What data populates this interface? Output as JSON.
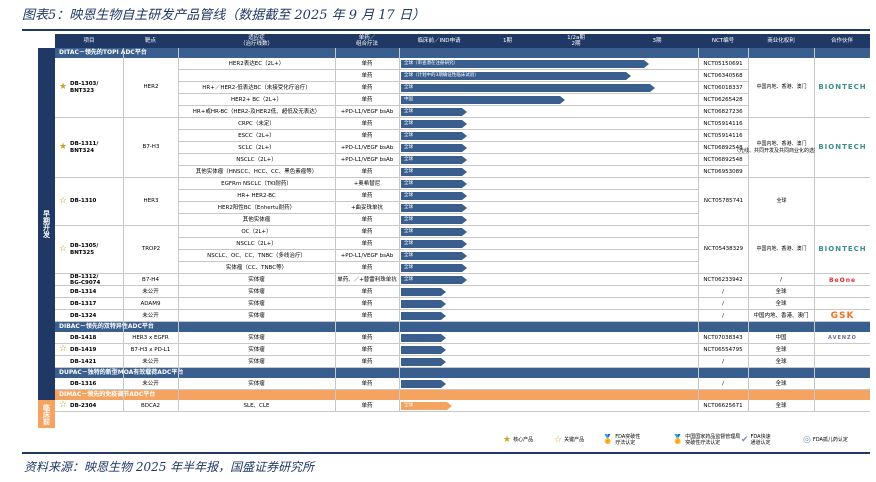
{
  "title": "图表5：映恩生物自主研发产品管线（数据截至 2025 年 9 月 17 日）",
  "source": "资料来源：映恩生物 2025 年半年报，国盛证券研究所",
  "colors": {
    "navy": "#1f3864",
    "steel": "#3a5f8f",
    "orange": "#f4a460",
    "border": "#c8c8c8",
    "gold": "#c9a227",
    "biontech": "#3c8e8e",
    "gsk": "#f36f21",
    "beone": "#e03030"
  },
  "header": {
    "drug": "项目",
    "target": "靶点",
    "indication": "适应症\n（治疗线数）",
    "regimen": "单药／\n组合疗法",
    "preclinical": "临床前／IND申请",
    "phase1": "1期",
    "phase2": "1/2a期\n2期",
    "phase3": "3期",
    "nct": "NCT编号",
    "rights": "商业化权利",
    "partner": "合作伙伴"
  },
  "sidebar": {
    "top": "早期开发",
    "bottom": "临床前"
  },
  "sections": [
    {
      "label": "DITAC－领先的TOPI ADC平台",
      "color": "#3a5f8f"
    },
    {
      "label": "DIBAC－领先的双特异性ADC平台",
      "color": "#3a5f8f"
    },
    {
      "label": "DUPAC－独特的新型MOA有效载荷ADC平台",
      "color": "#3a5f8f"
    },
    {
      "label": "DIMAC－领先的免疫调节ADC平台",
      "color": "#f4a460"
    }
  ],
  "drugs": [
    {
      "name": "DB-1303/\nBNT323",
      "star": "★",
      "target": "HER2",
      "rights": "中国内地、香港、澳门",
      "partner": "BIONTECH"
    },
    {
      "name": "DB-1311/\nBNT324",
      "star": "★",
      "target": "B7-H3",
      "rights": "中国内地、香港、澳门\n（光线、共同开发及共同商业化的选择权）",
      "partner": "BIONTECH"
    },
    {
      "name": "DB-1310",
      "star": "☆",
      "target": "HER3",
      "rights": "全球",
      "partner": ""
    },
    {
      "name": "DB-1305/\nBNT325",
      "star": "☆",
      "target": "TROP2",
      "rights": "中国内地、香港、澳门",
      "partner": "BIONTECH"
    }
  ],
  "rows": [
    {
      "indication": "HER2表达EC（2L+）",
      "regimen": "单药",
      "bar_text": "全球（审查潜在注册研究）",
      "nct": "NCT05150691"
    },
    {
      "indication": "",
      "regimen": "单药",
      "bar_text": "全球（计划中的3期确证性临床试验）",
      "nct": "NCT06340568"
    },
    {
      "indication": "HR+／HER2-低表达BC（未接受化疗治疗）",
      "regimen": "单药",
      "bar_text": "全球",
      "nct": "NCT06018337"
    },
    {
      "indication": "HER2+ BC（2L+）",
      "regimen": "单药",
      "bar_text": "中国",
      "nct": "NCT06265428"
    },
    {
      "indication": "HR+或HR-BC（HER2-及HER2低、超低及无表达）",
      "regimen": "+PD-L1/VEGF bsAb",
      "bar_text": "全球",
      "nct": "NCT06827236"
    },
    {
      "indication": "CRPC（未定）",
      "regimen": "单药",
      "bar_text": "全球",
      "nct": "NCT05914116"
    },
    {
      "indication": "ESCC（2L+）",
      "regimen": "单药",
      "bar_text": "全球",
      "nct": "NCT05914116"
    },
    {
      "indication": "SCLC（2L+）",
      "regimen": "+PD-L1/VEGF bsAb",
      "bar_text": "全球",
      "nct": "NCT06892548"
    },
    {
      "indication": "NSCLC（2L+）",
      "regimen": "+PD-L1/VEGF bsAb",
      "bar_text": "全球",
      "nct": "NCT06892548"
    },
    {
      "indication": "其他实体瘤（HNSCC、HCC、CC、黑色素瘤等）",
      "regimen": "单药",
      "bar_text": "全球",
      "nct": "NCT06953089"
    },
    {
      "indication": "EGFRm NSCLC（TKI耐药）",
      "regimen": "+奥希替尼",
      "bar_text": "全球",
      "nct": ""
    },
    {
      "indication": "HR+ HER2-BC",
      "regimen": "单药",
      "bar_text": "全球",
      "nct": ""
    },
    {
      "indication": "HER2阳性BC（Enhertu耐药）",
      "regimen": "+曲妥珠单抗",
      "bar_text": "全球",
      "nct": ""
    },
    {
      "indication": "其他实体瘤",
      "regimen": "单药",
      "bar_text": "全球",
      "nct": ""
    },
    {
      "indication": "OC（2L+）",
      "regimen": "单药",
      "bar_text": "全球",
      "nct": ""
    },
    {
      "indication": "NSCLC（2L+）",
      "regimen": "单药",
      "bar_text": "全球",
      "nct": ""
    },
    {
      "indication": "NSCLC、OC、CC、TNBC（多线治疗）",
      "regimen": "+PD-L1/VEGF bsAb",
      "bar_text": "全球",
      "nct": ""
    },
    {
      "indication": "实体瘤（CC、TNBC等）",
      "regimen": "单药",
      "bar_text": "全球",
      "nct": ""
    },
    {
      "drug": "DB-1312/\nBG-C9074",
      "target": "B7-H4",
      "indication": "实体瘤",
      "regimen": "单药、／+替雷利珠单抗",
      "bar_text": "全球",
      "nct": "NCT06233942",
      "rights": "/",
      "partner": "BeOne"
    },
    {
      "drug": "DB-1314",
      "target": "未公开",
      "indication": "实体瘤",
      "regimen": "单药",
      "bar_text": "",
      "nct": "/",
      "rights": "全球",
      "partner": ""
    },
    {
      "drug": "DB-1317",
      "target": "ADAM9",
      "indication": "实体瘤",
      "regimen": "单药",
      "bar_text": "",
      "nct": "/",
      "rights": "全球",
      "partner": ""
    },
    {
      "drug": "DB-1324",
      "target": "未公开",
      "indication": "实体瘤",
      "regimen": "单药",
      "bar_text": "",
      "nct": "/",
      "rights": "中国内地、香港、澳门",
      "partner": "GSK"
    },
    {
      "drug": "DB-1418",
      "target": "HER3 x EGFR",
      "indication": "实体瘤",
      "regimen": "单药",
      "bar_text": "",
      "nct": "NCT07038343",
      "rights": "中国",
      "partner": "AVENZO"
    },
    {
      "drug": "DB-1419",
      "target": "B7-H3 x PD-L1",
      "indication": "实体瘤",
      "regimen": "单药",
      "bar_text": "",
      "nct": "NCT06554795",
      "rights": "全球",
      "partner": ""
    },
    {
      "drug": "DB-1421",
      "target": "未公开",
      "indication": "实体瘤",
      "regimen": "单药",
      "bar_text": "",
      "nct": "/",
      "rights": "全球",
      "partner": ""
    },
    {
      "drug": "DB-1316",
      "target": "未公开",
      "indication": "实体瘤",
      "regimen": "单药",
      "bar_text": "",
      "nct": "/",
      "rights": "全球",
      "partner": ""
    },
    {
      "drug": "DB-2304",
      "target": "BDCA2",
      "indication": "SLE、CLE",
      "regimen": "单药",
      "bar_text": "全球",
      "nct": "NCT06625671",
      "rights": "全球",
      "partner": ""
    }
  ],
  "merged_ncts": {
    "db1310": "NCT05785741",
    "db1305": "NCT05438329"
  },
  "legend": [
    {
      "icon": "★",
      "label": "核心产品"
    },
    {
      "icon": "☆",
      "label": "关键产品"
    },
    {
      "icon": "🏅",
      "label": "FDA突破性\n疗法认定"
    },
    {
      "icon": "🏅",
      "label": "中国国家药品监督管理局\n突破性疗法认定"
    },
    {
      "icon": "✔",
      "label": "FDA快速\n通道认定"
    },
    {
      "icon": "◎",
      "label": "FDA孤儿药认定"
    }
  ],
  "chart_data": {
    "type": "bar",
    "title": "映恩生物自主研发产品管线",
    "categories": [
      "DB-1303 HER2表达EC",
      "DB-1303 计划3期",
      "DB-1303 HR+/HER2-低BC",
      "DB-1303 HER2+ BC",
      "DB-1303 HR+或HR-BC",
      "DB-1311 CRPC",
      "DB-1311 ESCC",
      "DB-1311 SCLC",
      "DB-1311 NSCLC",
      "DB-1311 其他实体瘤",
      "DB-1310 EGFRm NSCLC",
      "DB-1310 HR+ HER2-BC",
      "DB-1310 HER2阳性BC",
      "DB-1310 其他实体瘤",
      "DB-1305 OC",
      "DB-1305 NSCLC",
      "DB-1305 NSCLC/OC/CC/TNBC",
      "DB-1305 实体瘤",
      "DB-1312",
      "DB-1314",
      "DB-1317",
      "DB-1324",
      "DB-1418",
      "DB-1419",
      "DB-1421",
      "DB-1316",
      "DB-2304"
    ],
    "values": [
      0.83,
      0.77,
      0.85,
      0.55,
      0.22,
      0.22,
      0.22,
      0.22,
      0.22,
      0.22,
      0.22,
      0.22,
      0.22,
      0.22,
      0.22,
      0.22,
      0.22,
      0.22,
      0.22,
      0.15,
      0.15,
      0.15,
      0.15,
      0.15,
      0.15,
      0.15,
      0.17
    ],
    "scale": [
      "临床前／IND申请",
      "1期",
      "1/2a期 2期",
      "3期"
    ],
    "xlim": [
      0,
      1
    ]
  }
}
